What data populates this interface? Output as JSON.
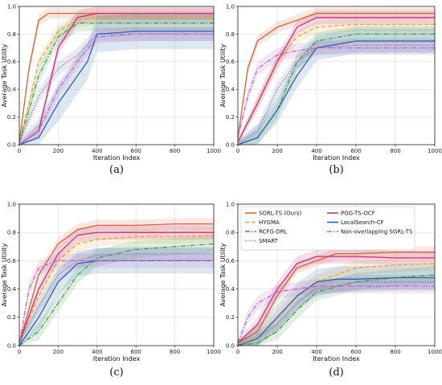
{
  "chart_data": {
    "type": "line",
    "xlabel": "Iteration Index",
    "ylabel": "Average Task Utility",
    "xlim": [
      0,
      1000
    ],
    "ylim": [
      0,
      1.0
    ],
    "xticks": [
      "0",
      "200",
      "400",
      "600",
      "800",
      "1000"
    ],
    "yticks": [
      "0.0",
      "0.2",
      "0.4",
      "0.6",
      "0.8",
      "1.0"
    ],
    "grid": true,
    "legend_position": "top (panel d)",
    "series_styles": [
      {
        "name": "SGRL-TS (Ours)",
        "color": "#d2643c",
        "dash": ""
      },
      {
        "name": "HYGMA",
        "color": "#e8a23a",
        "dash": "5,3"
      },
      {
        "name": "RCFG-DRL",
        "color": "#3f9c4a",
        "dash": "6,2,1.5,2"
      },
      {
        "name": "SMART",
        "color": "#7a78a8",
        "dash": "1.2,1.8"
      },
      {
        "name": "PGG-TS-OCF",
        "color": "#c2337a",
        "dash": ""
      },
      {
        "name": "LocalSearch-CF",
        "color": "#2b62a8",
        "dash": ""
      },
      {
        "name": "Non-overlapping SGRL-TS",
        "color": "#b76cc9",
        "dash": "6,2,1.5,2"
      }
    ],
    "panels": [
      {
        "caption": "(a)",
        "series": [
          {
            "x": [
              0,
              50,
              100,
              150,
              200,
              300,
              400,
              600,
              800,
              1000
            ],
            "y": [
              0.02,
              0.55,
              0.9,
              0.95,
              0.95,
              0.95,
              0.95,
              0.95,
              0.95,
              0.95
            ]
          },
          {
            "x": [
              0,
              50,
              100,
              200,
              300,
              400,
              600,
              800,
              1000
            ],
            "y": [
              0.02,
              0.3,
              0.6,
              0.82,
              0.9,
              0.92,
              0.92,
              0.92,
              0.92
            ]
          },
          {
            "x": [
              0,
              50,
              100,
              200,
              300,
              400,
              600,
              800,
              1000
            ],
            "y": [
              0.02,
              0.25,
              0.5,
              0.78,
              0.88,
              0.88,
              0.88,
              0.88,
              0.88
            ]
          },
          {
            "x": [
              0,
              100,
              200,
              300,
              400,
              600,
              800,
              1000
            ],
            "y": [
              0.02,
              0.35,
              0.55,
              0.65,
              0.8,
              0.8,
              0.8,
              0.8
            ]
          },
          {
            "x": [
              0,
              100,
              150,
              200,
              300,
              400,
              600,
              800,
              1000
            ],
            "y": [
              0.0,
              0.1,
              0.4,
              0.7,
              0.92,
              0.95,
              0.95,
              0.95,
              0.95
            ]
          },
          {
            "x": [
              0,
              100,
              200,
              300,
              350,
              400,
              600,
              800,
              1000
            ],
            "y": [
              0.0,
              0.05,
              0.3,
              0.5,
              0.6,
              0.8,
              0.82,
              0.82,
              0.82
            ]
          },
          {
            "x": [
              0,
              100,
              200,
              300,
              400,
              600,
              800,
              1000
            ],
            "y": [
              0.0,
              0.1,
              0.4,
              0.6,
              0.78,
              0.8,
              0.8,
              0.8
            ]
          }
        ]
      },
      {
        "caption": "(b)",
        "series": [
          {
            "x": [
              0,
              50,
              100,
              200,
              300,
              400,
              600,
              800,
              1000
            ],
            "y": [
              0.05,
              0.55,
              0.75,
              0.85,
              0.9,
              0.95,
              0.95,
              0.95,
              0.95
            ]
          },
          {
            "x": [
              0,
              100,
              200,
              300,
              400,
              600,
              800,
              1000
            ],
            "y": [
              0.02,
              0.3,
              0.6,
              0.78,
              0.85,
              0.87,
              0.87,
              0.87
            ]
          },
          {
            "x": [
              0,
              100,
              200,
              300,
              400,
              600,
              800,
              1000
            ],
            "y": [
              0.0,
              0.05,
              0.25,
              0.6,
              0.75,
              0.8,
              0.8,
              0.8
            ]
          },
          {
            "x": [
              0,
              100,
              200,
              300,
              400,
              600,
              800,
              1000
            ],
            "y": [
              0.0,
              0.1,
              0.4,
              0.6,
              0.7,
              0.72,
              0.72,
              0.72
            ]
          },
          {
            "x": [
              0,
              100,
              200,
              300,
              400,
              600,
              800,
              1000
            ],
            "y": [
              0.02,
              0.3,
              0.6,
              0.85,
              0.92,
              0.92,
              0.92,
              0.92
            ]
          },
          {
            "x": [
              0,
              100,
              200,
              300,
              400,
              600,
              800,
              1000
            ],
            "y": [
              0.0,
              0.05,
              0.25,
              0.5,
              0.7,
              0.75,
              0.75,
              0.75
            ]
          },
          {
            "x": [
              0,
              50,
              100,
              200,
              300,
              400,
              600,
              800,
              1000
            ],
            "y": [
              0.05,
              0.35,
              0.55,
              0.65,
              0.68,
              0.7,
              0.7,
              0.7,
              0.7
            ]
          }
        ]
      },
      {
        "caption": "(c)",
        "series": [
          {
            "x": [
              0,
              100,
              200,
              300,
              400,
              600,
              800,
              1000
            ],
            "y": [
              0.02,
              0.5,
              0.72,
              0.82,
              0.85,
              0.85,
              0.86,
              0.86
            ]
          },
          {
            "x": [
              0,
              100,
              200,
              300,
              400,
              600,
              800,
              1000
            ],
            "y": [
              0.02,
              0.35,
              0.6,
              0.72,
              0.75,
              0.77,
              0.77,
              0.78
            ]
          },
          {
            "x": [
              0,
              100,
              200,
              300,
              400,
              600,
              800,
              1000
            ],
            "y": [
              0.0,
              0.1,
              0.3,
              0.5,
              0.62,
              0.68,
              0.7,
              0.72
            ]
          },
          {
            "x": [
              0,
              100,
              200,
              300,
              400,
              600,
              800,
              1000
            ],
            "y": [
              0.02,
              0.28,
              0.5,
              0.6,
              0.64,
              0.65,
              0.65,
              0.65
            ]
          },
          {
            "x": [
              0,
              100,
              200,
              300,
              400,
              600,
              800,
              1000
            ],
            "y": [
              0.02,
              0.4,
              0.65,
              0.78,
              0.8,
              0.8,
              0.8,
              0.8
            ]
          },
          {
            "x": [
              0,
              100,
              200,
              300,
              400,
              600,
              800,
              1000
            ],
            "y": [
              0.0,
              0.2,
              0.45,
              0.58,
              0.6,
              0.6,
              0.6,
              0.6
            ]
          },
          {
            "x": [
              0,
              50,
              100,
              200,
              300,
              400,
              600,
              800,
              1000
            ],
            "y": [
              0.02,
              0.4,
              0.55,
              0.6,
              0.6,
              0.6,
              0.6,
              0.6,
              0.6
            ]
          }
        ]
      },
      {
        "caption": "(d)",
        "series": [
          {
            "x": [
              0,
              100,
              200,
              300,
              400,
              500,
              600,
              800,
              1000
            ],
            "y": [
              0.02,
              0.1,
              0.35,
              0.55,
              0.6,
              0.65,
              0.65,
              0.66,
              0.66
            ]
          },
          {
            "x": [
              0,
              100,
              200,
              300,
              400,
              600,
              800,
              1000
            ],
            "y": [
              0.0,
              0.05,
              0.2,
              0.35,
              0.45,
              0.55,
              0.57,
              0.58
            ]
          },
          {
            "x": [
              0,
              100,
              200,
              300,
              400,
              600,
              800,
              1000
            ],
            "y": [
              0.0,
              0.02,
              0.1,
              0.25,
              0.38,
              0.45,
              0.48,
              0.5
            ]
          },
          {
            "x": [
              0,
              100,
              200,
              300,
              400,
              600,
              800,
              1000
            ],
            "y": [
              0.0,
              0.05,
              0.15,
              0.3,
              0.4,
              0.45,
              0.45,
              0.45
            ]
          },
          {
            "x": [
              0,
              100,
              200,
              300,
              400,
              600,
              800,
              1000
            ],
            "y": [
              0.02,
              0.15,
              0.4,
              0.58,
              0.63,
              0.63,
              0.62,
              0.62
            ]
          },
          {
            "x": [
              0,
              100,
              200,
              300,
              400,
              500,
              600,
              800,
              1000
            ],
            "y": [
              0.0,
              0.05,
              0.2,
              0.35,
              0.45,
              0.47,
              0.47,
              0.48,
              0.48
            ]
          },
          {
            "x": [
              0,
              50,
              100,
              200,
              300,
              400,
              600,
              800,
              1000
            ],
            "y": [
              0.02,
              0.2,
              0.3,
              0.38,
              0.4,
              0.42,
              0.42,
              0.42,
              0.42
            ]
          }
        ]
      }
    ]
  }
}
